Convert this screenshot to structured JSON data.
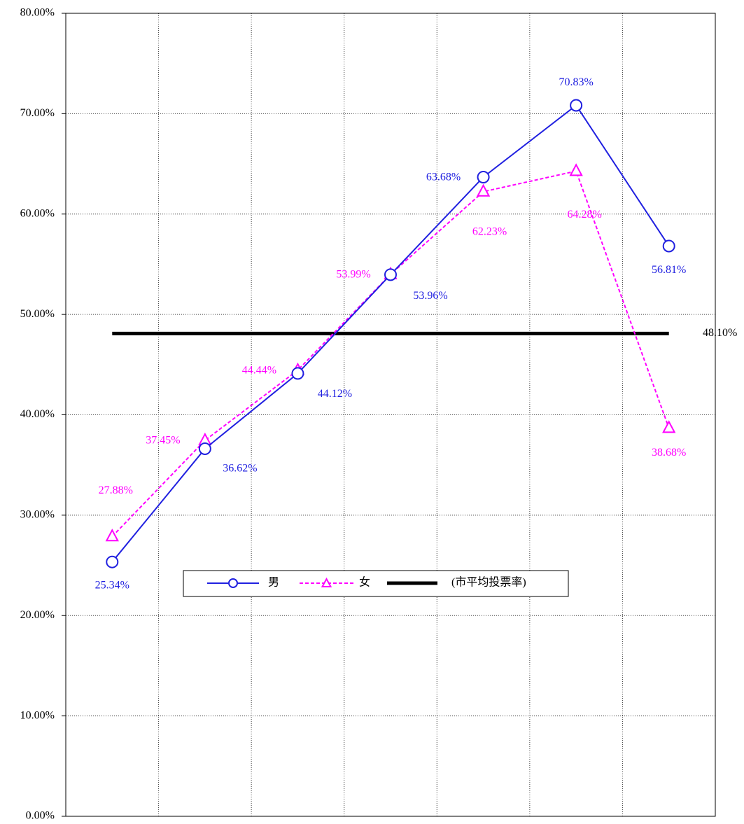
{
  "chart_data": {
    "type": "line",
    "categories": [
      null,
      null,
      null,
      null,
      null,
      null,
      null
    ],
    "series": [
      {
        "name": "男",
        "color": "#2020e0",
        "marker": "circle",
        "dash": false,
        "values": [
          25.34,
          36.62,
          44.12,
          53.96,
          63.68,
          70.83,
          56.81
        ],
        "value_labels": [
          "25.34%",
          "36.62%",
          "44.12%",
          "53.96%",
          "63.68%",
          "70.83%",
          "56.81%"
        ]
      },
      {
        "name": "女",
        "color": "#ff00ff",
        "marker": "triangle",
        "dash": true,
        "values": [
          27.88,
          37.45,
          44.44,
          53.99,
          62.23,
          64.28,
          38.68
        ],
        "value_labels": [
          "27.88%",
          "37.45%",
          "44.44%",
          "53.99%",
          "62.23%",
          "64.28%",
          "38.68%"
        ]
      },
      {
        "name": "(市平均投票率)",
        "color": "#000000",
        "marker": null,
        "dash": false,
        "values": [
          48.1,
          48.1,
          48.1,
          48.1,
          48.1,
          48.1,
          48.1
        ],
        "value_labels": [
          null,
          null,
          null,
          null,
          null,
          null,
          "48.10%"
        ]
      }
    ],
    "ylim": [
      0,
      80
    ],
    "yticks": [
      {
        "value": 0,
        "label": "0.00%"
      },
      {
        "value": 10,
        "label": "10.00%"
      },
      {
        "value": 20,
        "label": "20.00%"
      },
      {
        "value": 30,
        "label": "30.00%"
      },
      {
        "value": 40,
        "label": "40.00%"
      },
      {
        "value": 50,
        "label": "50.00%"
      },
      {
        "value": 60,
        "label": "60.00%"
      },
      {
        "value": 70,
        "label": "70.00%"
      },
      {
        "value": 80,
        "label": "80.00%"
      }
    ],
    "grid": true,
    "legend": "bottom"
  }
}
